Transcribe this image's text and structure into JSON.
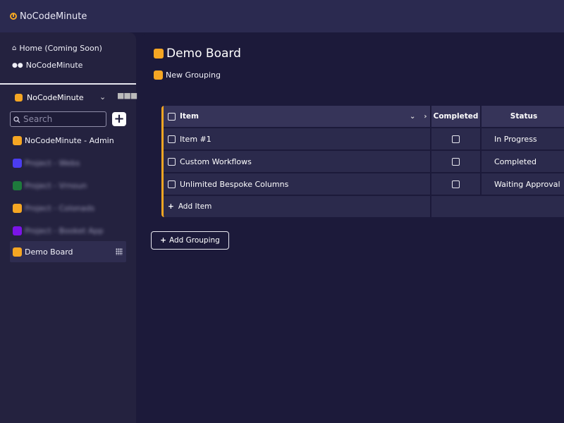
{
  "app": {
    "title": "NoCodeMinute"
  },
  "colors": {
    "accent": "#f5a623",
    "background": "#1c1a3a",
    "sidebar": "#24223f",
    "topbar": "#2b2a50"
  },
  "sidebar": {
    "nav": [
      {
        "label": "Home (Coming Soon)",
        "icon": "home-icon"
      },
      {
        "label": "NoCodeMinute",
        "icon": "users-icon"
      }
    ],
    "workspace": {
      "label": "NoCodeMinute",
      "color": "#f5a623"
    },
    "search": {
      "placeholder": "Search"
    },
    "boards": [
      {
        "label": "NoCodeMinute - Admin",
        "color": "#f5a623",
        "blurred": false
      },
      {
        "label": "Project - Webs",
        "color": "#4b3df0",
        "blurred": true
      },
      {
        "label": "Project - Vrnoun",
        "color": "#1e7a3c",
        "blurred": true
      },
      {
        "label": "Project - Colonads",
        "color": "#f5a623",
        "blurred": true
      },
      {
        "label": "Project - Booket App",
        "color": "#7b14e8",
        "blurred": true
      },
      {
        "label": "Demo Board",
        "color": "#f5a623",
        "blurred": false,
        "active": true
      }
    ]
  },
  "main": {
    "title": "Demo Board",
    "grouping": "New Grouping",
    "table": {
      "headers": {
        "item": "Item",
        "completed": "Completed",
        "status": "Status"
      },
      "rows": [
        {
          "item": "Item #1",
          "status": "In Progress"
        },
        {
          "item": "Custom Workflows",
          "status": "Completed"
        },
        {
          "item": "Unlimited Bespoke Columns",
          "status": "Waiting Approval"
        }
      ],
      "add_item": "Add Item"
    },
    "add_grouping": "Add Grouping"
  }
}
